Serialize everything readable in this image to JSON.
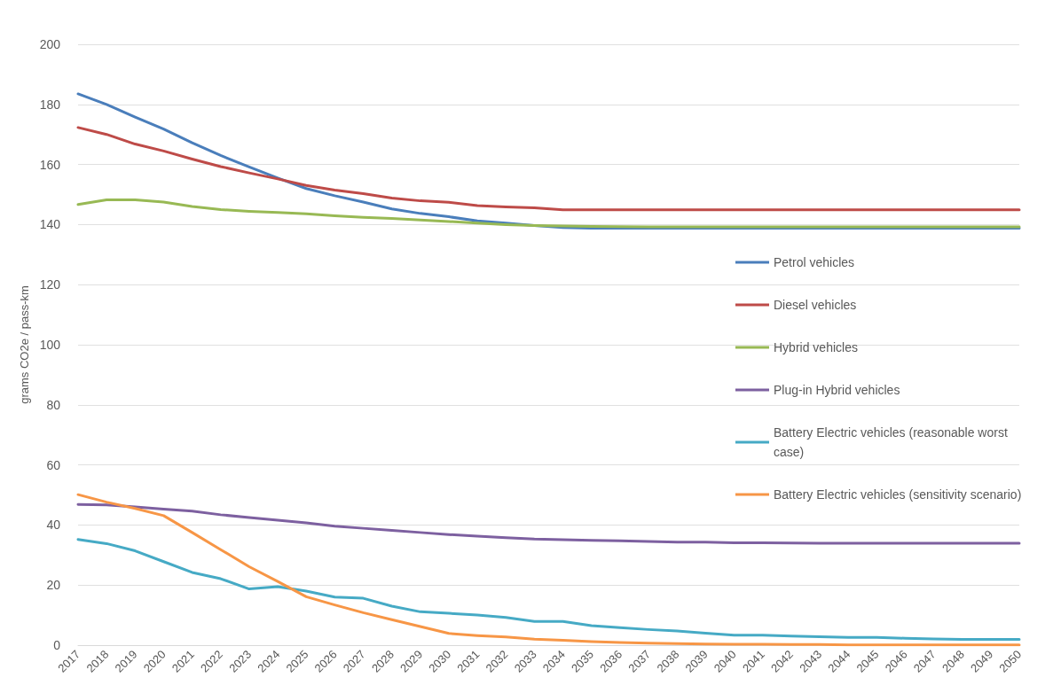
{
  "chart_data": {
    "type": "line",
    "ylabel": "grams CO2e / pass-km",
    "categories": [
      "2017",
      "2018",
      "2019",
      "2020",
      "2021",
      "2022",
      "2023",
      "2024",
      "2025",
      "2026",
      "2027",
      "2028",
      "2029",
      "2030",
      "2031",
      "2032",
      "2033",
      "2034",
      "2035",
      "2036",
      "2037",
      "2038",
      "2039",
      "2040",
      "2041",
      "2042",
      "2043",
      "2044",
      "2045",
      "2046",
      "2047",
      "2048",
      "2049",
      "2050"
    ],
    "ylim": [
      0,
      200
    ],
    "yticks": [
      0,
      20,
      40,
      60,
      80,
      100,
      120,
      140,
      160,
      180,
      200
    ],
    "grid": "y",
    "legend": "right",
    "marker": "none",
    "line_style": "solid",
    "series": [
      {
        "name": "Petrol vehicles",
        "color": "#4a7ebb",
        "values": [
          183.5,
          180,
          175.8,
          171.8,
          167.2,
          163,
          159.2,
          155.5,
          152,
          149.6,
          147.5,
          145.2,
          143.7,
          142.6,
          141.2,
          140.5,
          139.7,
          139,
          138.8,
          138.8,
          138.8,
          138.8,
          138.8,
          138.8,
          138.8,
          138.8,
          138.8,
          138.8,
          138.8,
          138.8,
          138.8,
          138.8,
          138.8,
          138.8
        ]
      },
      {
        "name": "Diesel vehicles",
        "color": "#be4b48",
        "values": [
          172.3,
          170,
          166.8,
          164.5,
          161.8,
          159.3,
          157.2,
          155.2,
          153,
          151.5,
          150.3,
          148.8,
          147.9,
          147.4,
          146.3,
          145.9,
          145.6,
          144.9,
          144.9,
          144.9,
          144.9,
          144.9,
          144.9,
          144.9,
          144.9,
          144.9,
          144.9,
          144.9,
          144.9,
          144.9,
          144.9,
          144.9,
          144.9,
          144.9
        ]
      },
      {
        "name": "Hybrid vehicles",
        "color": "#98b954",
        "values": [
          146.7,
          148.2,
          148.2,
          147.5,
          146,
          145,
          144.4,
          144,
          143.6,
          142.9,
          142.4,
          142,
          141.5,
          141,
          140.5,
          140,
          139.7,
          139.5,
          139.4,
          139.3,
          139.2,
          139.2,
          139.2,
          139.2,
          139.2,
          139.2,
          139.2,
          139.2,
          139.2,
          139.2,
          139.2,
          139.2,
          139.2,
          139.2
        ]
      },
      {
        "name": "Plug-in Hybrid vehicles",
        "color": "#7d60a0",
        "values": [
          46.8,
          46.7,
          46,
          45.3,
          44.6,
          43.4,
          42.5,
          41.6,
          40.7,
          39.6,
          38.9,
          38.2,
          37.5,
          36.8,
          36.3,
          35.8,
          35.3,
          35.1,
          34.9,
          34.7,
          34.5,
          34.3,
          34.3,
          34.1,
          34.1,
          34,
          33.9,
          33.9,
          33.9,
          33.9,
          33.9,
          33.9,
          33.9,
          33.9
        ]
      },
      {
        "name": "Battery Electric vehicles (reasonable worst case)",
        "color": "#46aac5",
        "values": [
          35.2,
          33.8,
          31.4,
          27.8,
          24.2,
          22.1,
          18.7,
          19.5,
          18,
          16,
          15.6,
          13,
          11.1,
          10.6,
          10,
          9.2,
          7.9,
          7.9,
          6.5,
          5.8,
          5.2,
          4.7,
          4,
          3.3,
          3.3,
          3,
          2.8,
          2.6,
          2.6,
          2.3,
          2.1,
          1.9,
          1.9,
          1.9
        ]
      },
      {
        "name": "Battery Electric vehicles (sensitivity scenario)",
        "color": "#f79646",
        "values": [
          50.1,
          47.6,
          45.5,
          43.1,
          37.5,
          31.8,
          26.1,
          21.2,
          16.1,
          13.4,
          10.8,
          8.5,
          6.2,
          3.9,
          3.2,
          2.7,
          2,
          1.6,
          1.2,
          0.9,
          0.7,
          0.5,
          0.4,
          0.3,
          0.3,
          0.2,
          0.2,
          0.1,
          0.1,
          0.1,
          0.1,
          0.1,
          0.1,
          0.1
        ]
      }
    ]
  }
}
